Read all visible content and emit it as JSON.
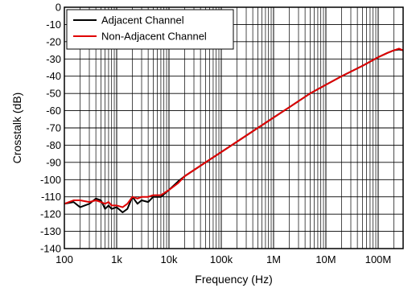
{
  "chart_data": {
    "type": "line",
    "title": "",
    "xlabel": "Frequency (Hz)",
    "ylabel": "Crosstalk (dB)",
    "x_scale": "log",
    "xlim": [
      100,
      300000000
    ],
    "ylim": [
      -140,
      0
    ],
    "grid": true,
    "legend_position": "top-left",
    "x_ticks": [
      {
        "value": 100,
        "label": "100"
      },
      {
        "value": 1000,
        "label": "1k"
      },
      {
        "value": 10000,
        "label": "10k"
      },
      {
        "value": 100000,
        "label": "100k"
      },
      {
        "value": 1000000,
        "label": "1M"
      },
      {
        "value": 10000000,
        "label": "10M"
      },
      {
        "value": 100000000,
        "label": "100M"
      }
    ],
    "y_ticks": [
      0,
      -10,
      -20,
      -30,
      -40,
      -50,
      -60,
      -70,
      -80,
      -90,
      -100,
      -110,
      -120,
      -130,
      -140
    ],
    "series": [
      {
        "name": "Adjacent Channel",
        "color": "#000000",
        "x": [
          100,
          150,
          200,
          300,
          400,
          500,
          600,
          700,
          800,
          1000,
          1300,
          1600,
          2000,
          2500,
          3000,
          4000,
          5000,
          7000,
          10000,
          15000,
          20000,
          50000,
          100000,
          200000,
          500000,
          1000000,
          2000000,
          5000000,
          10000000,
          20000000,
          50000000,
          100000000,
          150000000,
          200000000,
          250000000,
          300000000
        ],
        "y": [
          -114,
          -113,
          -116,
          -114,
          -111,
          -112,
          -117,
          -115,
          -117,
          -116,
          -119,
          -117,
          -110,
          -114,
          -112,
          -113,
          -110,
          -110,
          -106,
          -101,
          -98,
          -90,
          -84,
          -78,
          -70,
          -64,
          -58,
          -50,
          -45,
          -40,
          -34,
          -29,
          -26.5,
          -25,
          -24.5,
          -25
        ]
      },
      {
        "name": "Non-Adjacent Channel",
        "color": "#e00000",
        "x": [
          100,
          150,
          200,
          300,
          400,
          500,
          600,
          700,
          800,
          1000,
          1300,
          1600,
          2000,
          2500,
          3000,
          4000,
          5000,
          7000,
          10000,
          15000,
          20000,
          50000,
          100000,
          200000,
          500000,
          1000000,
          2000000,
          5000000,
          10000000,
          20000000,
          50000000,
          100000000,
          150000000,
          200000000,
          250000000,
          300000000
        ],
        "y": [
          -114,
          -112,
          -112,
          -113,
          -112,
          -113,
          -114,
          -113,
          -115,
          -115,
          -116,
          -114,
          -110,
          -111,
          -110,
          -110,
          -109,
          -109,
          -106,
          -102,
          -98,
          -90,
          -84,
          -78,
          -70,
          -64,
          -58,
          -50,
          -45,
          -40,
          -34,
          -29,
          -26.5,
          -25,
          -24,
          -25
        ]
      }
    ]
  }
}
